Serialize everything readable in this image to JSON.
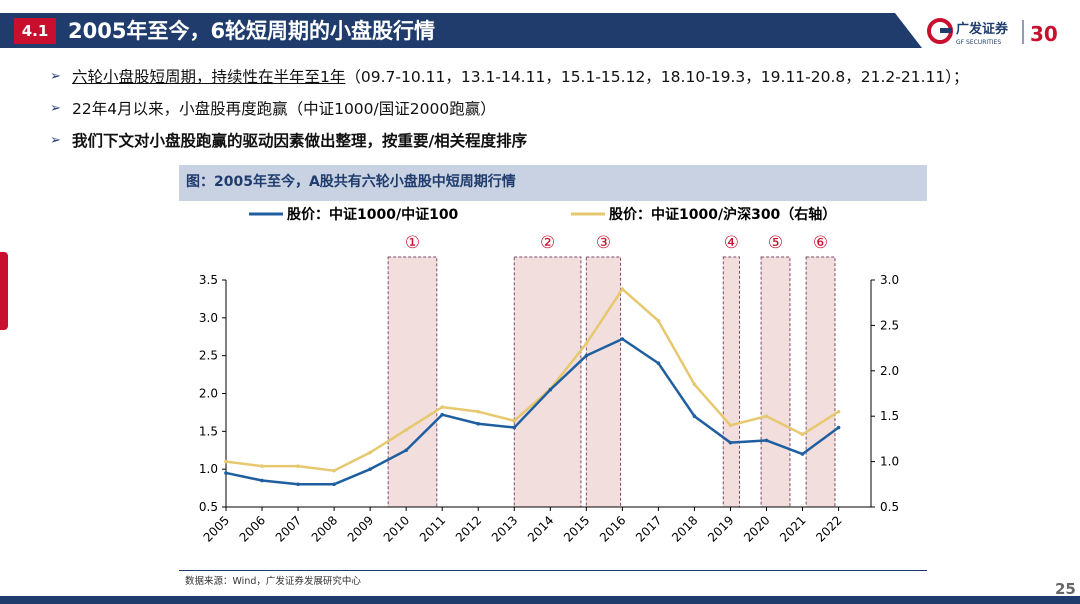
{
  "header": {
    "section_number": "4.1",
    "title": "2005年至今，6轮短周期的小盘股行情",
    "logo_text": "广发证券",
    "logo_sub": "GF SECURITIES",
    "logo_mark": "30"
  },
  "bullets": [
    {
      "text": "六轮小盘股短周期，持续性在半年至1年",
      "tail": "（09.7-10.11，13.1-14.11，15.1-15.12，18.10-19.3，19.11-20.8，21.2-21.11）；"
    },
    {
      "text": "22年4月以来，小盘股再度跑赢（中证1000/国证2000跑赢）"
    },
    {
      "text": "我们下文对小盘股跑赢的驱动因素做出整理，按重要/相关程度排序"
    }
  ],
  "figure": {
    "title": "图：2005年至今，A股共有六轮小盘股中短周期行情",
    "source": "数据来源：Wind，广发证券发展研究中心"
  },
  "chart_data": {
    "type": "line",
    "x": [
      "2005",
      "2006",
      "2007",
      "2008",
      "2009",
      "2010",
      "2011",
      "2012",
      "2013",
      "2014",
      "2015",
      "2016",
      "2017",
      "2018",
      "2019",
      "2020",
      "2021",
      "2022"
    ],
    "series": [
      {
        "name": "股价：中证1000/中证100",
        "axis": "left",
        "color": "#1f5fa0",
        "values": [
          0.95,
          0.85,
          0.8,
          0.8,
          1.0,
          1.25,
          1.72,
          1.6,
          1.55,
          2.05,
          2.5,
          2.72,
          2.4,
          1.7,
          1.35,
          1.38,
          1.2,
          1.55
        ]
      },
      {
        "name": "股价：中证1000/沪深300（右轴）",
        "axis": "right",
        "color": "#e6c86e",
        "values": [
          1.0,
          0.95,
          0.95,
          0.9,
          1.1,
          1.35,
          1.6,
          1.55,
          1.45,
          1.8,
          2.3,
          2.9,
          2.55,
          1.85,
          1.4,
          1.5,
          1.3,
          1.55
        ]
      }
    ],
    "ylim_left": [
      0.5,
      3.5
    ],
    "yticks_left": [
      "0.5",
      "1.0",
      "1.5",
      "2.0",
      "2.5",
      "3.0",
      "3.5"
    ],
    "ylim_right": [
      0.5,
      3.0
    ],
    "yticks_right": [
      "0.5",
      "1.0",
      "1.5",
      "2.0",
      "2.5",
      "3.0"
    ],
    "highlight_periods": [
      {
        "label": "①",
        "start": 2009.5,
        "end": 2010.85
      },
      {
        "label": "②",
        "start": 2013.0,
        "end": 2014.85
      },
      {
        "label": "③",
        "start": 2015.0,
        "end": 2015.95
      },
      {
        "label": "④",
        "start": 2018.8,
        "end": 2019.25
      },
      {
        "label": "⑤",
        "start": 2019.85,
        "end": 2020.65
      },
      {
        "label": "⑥",
        "start": 2021.1,
        "end": 2021.9
      }
    ],
    "legend_position": "top",
    "grid": false
  },
  "page_number": "25"
}
